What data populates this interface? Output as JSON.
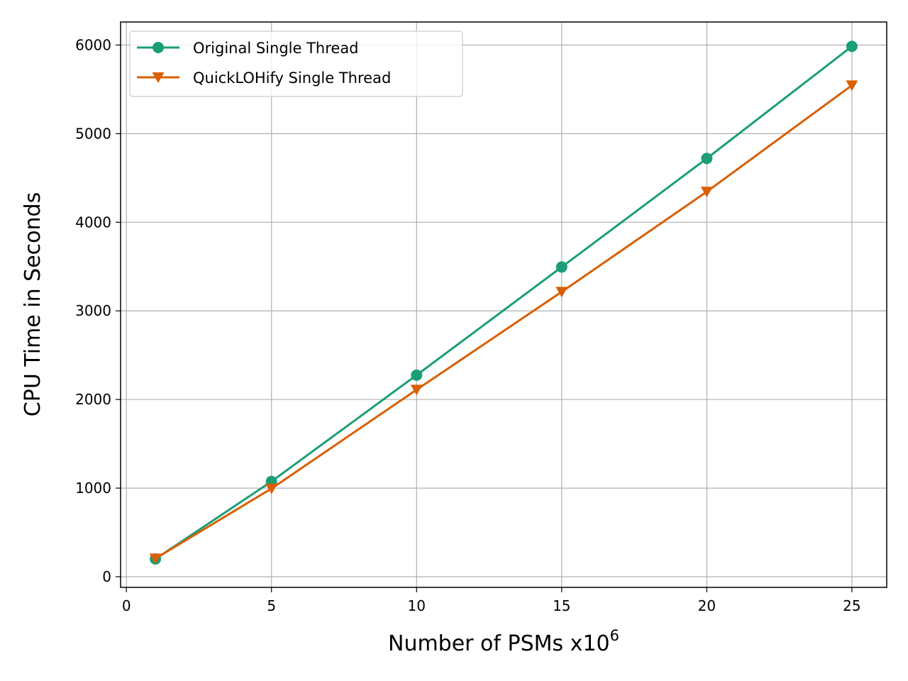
{
  "chart_data": {
    "type": "line",
    "xlabel": "Number of PSMs x10",
    "xlabel_superscript": "6",
    "ylabel": "CPU Time in Seconds",
    "x": [
      1,
      5,
      10,
      15,
      20,
      25
    ],
    "xlim": [
      -0.2,
      26.2
    ],
    "ylim": [
      -120,
      6260
    ],
    "xticks": [
      0,
      5,
      10,
      15,
      20,
      25
    ],
    "yticks": [
      0,
      1000,
      2000,
      3000,
      4000,
      5000,
      6000
    ],
    "grid": true,
    "legend_position": "top-left",
    "series": [
      {
        "name": "Original Single Thread",
        "color": "#1b9e77",
        "marker": "circle",
        "values": [
          200,
          1075,
          2275,
          3495,
          4720,
          5985
        ]
      },
      {
        "name": "QuickLOHify Single Thread",
        "color": "#d95f02",
        "marker": "triangle-down",
        "values": [
          205,
          995,
          2110,
          3215,
          4345,
          5545
        ]
      }
    ]
  }
}
